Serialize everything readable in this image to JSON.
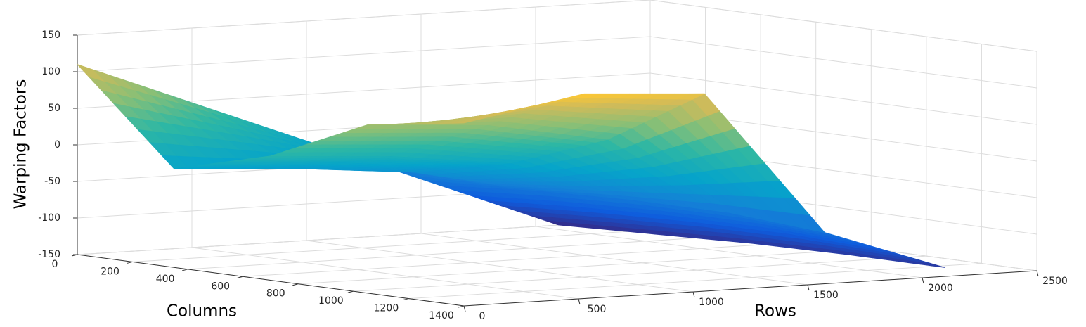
{
  "chart_data": {
    "type": "surface",
    "zlabel": "Warping Factors",
    "xlabel": "Columns",
    "ylabel": "Rows",
    "x": [
      0,
      350,
      700,
      1050,
      1400
    ],
    "y": [
      0,
      525,
      1050,
      1575,
      2100
    ],
    "z": [
      [
        110,
        -15,
        20,
        80,
        100
      ],
      [
        45,
        -25,
        10,
        70,
        130
      ],
      [
        -20,
        -40,
        -10,
        40,
        120
      ],
      [
        -85,
        -75,
        -70,
        -70,
        -80
      ],
      [
        -150,
        -145,
        -140,
        -138,
        -138
      ]
    ],
    "xlim": [
      0,
      1400
    ],
    "ylim": [
      0,
      2500
    ],
    "zlim": [
      -150,
      150
    ],
    "xticks": [
      0,
      200,
      400,
      600,
      800,
      1000,
      1200,
      1400
    ],
    "yticks": [
      0,
      500,
      1000,
      1500,
      2000,
      2500
    ],
    "zticks": [
      -150,
      -100,
      -50,
      0,
      50,
      100,
      150
    ],
    "grid": true,
    "colormap": "parula"
  }
}
